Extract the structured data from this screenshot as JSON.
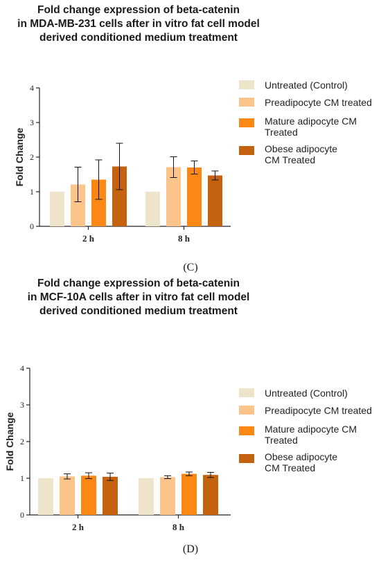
{
  "colors": {
    "untreated": "#ede4c9",
    "preadipocyte": "#fbc48b",
    "mature": "#fb8714",
    "obese": "#c46210"
  },
  "chart_data": [
    {
      "type": "bar",
      "title_lines": [
        "Fold change expression of beta-catenin",
        "in MDA-MB-231 cells after in vitro fat cell model",
        "derived conditioned medium treatment"
      ],
      "panel_label": "(C)",
      "xlabel": "",
      "ylabel": "Fold Change",
      "ylim": [
        0,
        4
      ],
      "yticks": [
        "0",
        "1",
        "2",
        "3",
        "4"
      ],
      "categories": [
        "2 h",
        "8 h"
      ],
      "grid": false,
      "legend_position": "right",
      "series": [
        {
          "name": "Untreated (Control)",
          "name_lines": [
            "Untreated (Control)"
          ],
          "color": "#ede4c9",
          "values": [
            1.0,
            1.0
          ],
          "errors": [
            0,
            0
          ]
        },
        {
          "name": "Preadipocyte CM treated",
          "name_lines": [
            "Preadipocyte CM treated"
          ],
          "color": "#fbc48b",
          "values": [
            1.21,
            1.71
          ],
          "errors": [
            0.5,
            0.3
          ]
        },
        {
          "name": "Mature adipocyte CM Treated",
          "name_lines": [
            "Mature adipocyte CM",
            "Treated"
          ],
          "color": "#fb8714",
          "values": [
            1.35,
            1.7
          ],
          "errors": [
            0.57,
            0.19
          ]
        },
        {
          "name": "Obese adipocyte CM Treated",
          "name_lines": [
            "Obese adipocyte",
            "CM Treated"
          ],
          "color": "#c46210",
          "values": [
            1.73,
            1.47
          ],
          "errors": [
            0.67,
            0.13
          ]
        }
      ]
    },
    {
      "type": "bar",
      "title_lines": [
        "Fold change expression of beta-catenin",
        "in MCF-10A cells after in vitro fat cell model",
        "derived conditioned medium treatment"
      ],
      "panel_label": "(D)",
      "xlabel": "",
      "ylabel": "Fold Change",
      "ylim": [
        0,
        4
      ],
      "yticks": [
        "0",
        "1",
        "2",
        "3",
        "4"
      ],
      "categories": [
        "2 h",
        "8 h"
      ],
      "grid": false,
      "legend_position": "right",
      "series": [
        {
          "name": "Untreated (Control)",
          "name_lines": [
            "Untreated (Control)"
          ],
          "color": "#ede4c9",
          "values": [
            1.0,
            1.0
          ],
          "errors": [
            0,
            0
          ]
        },
        {
          "name": "Preadipocyte CM treated",
          "name_lines": [
            "Preadipocyte CM treated"
          ],
          "color": "#fbc48b",
          "values": [
            1.05,
            1.03
          ],
          "errors": [
            0.07,
            0.04
          ]
        },
        {
          "name": "Mature adipocyte CM Treated",
          "name_lines": [
            "Mature adipocyte CM",
            "Treated"
          ],
          "color": "#fb8714",
          "values": [
            1.07,
            1.12
          ],
          "errors": [
            0.08,
            0.05
          ]
        },
        {
          "name": "Obese adipocyte CM Treated",
          "name_lines": [
            "Obese adipocyte",
            "CM Treated"
          ],
          "color": "#c46210",
          "values": [
            1.04,
            1.09
          ],
          "errors": [
            0.1,
            0.07
          ]
        }
      ]
    }
  ]
}
